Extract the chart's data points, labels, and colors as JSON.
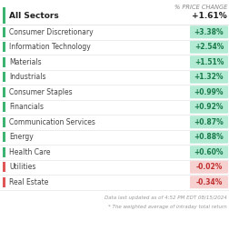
{
  "header_label": "All Sectors",
  "header_value": "+1.61%",
  "col_header": "% PRICE CHANGE",
  "sectors": [
    {
      "name": "Consumer Discretionary",
      "value": "+3.38%",
      "positive": true
    },
    {
      "name": "Information Technology",
      "value": "+2.54%",
      "positive": true
    },
    {
      "name": "Materials",
      "value": "+1.51%",
      "positive": true
    },
    {
      "name": "Industrials",
      "value": "+1.32%",
      "positive": true
    },
    {
      "name": "Consumer Staples",
      "value": "+0.99%",
      "positive": true
    },
    {
      "name": "Financials",
      "value": "+0.92%",
      "positive": true
    },
    {
      "name": "Communication Services",
      "value": "+0.87%",
      "positive": true
    },
    {
      "name": "Energy",
      "value": "+0.88%",
      "positive": true
    },
    {
      "name": "Health Care",
      "value": "+0.60%",
      "positive": true
    },
    {
      "name": "Utilities",
      "value": "-0.02%",
      "positive": false
    },
    {
      "name": "Real Estate",
      "value": "-0.34%",
      "positive": false
    }
  ],
  "footer1": "Data last updated as of 4:52 PM EDT 08/15/2024",
  "footer2": "* The weighted average of intraday total return",
  "positive_bar_color": "#3cb371",
  "negative_bar_color": "#e05555",
  "positive_badge_color": "#b2ead4",
  "negative_badge_color": "#f7d0d0",
  "positive_text_color": "#1a7a4a",
  "negative_text_color": "#c03030",
  "row_line_color": "#e0e0e0",
  "bg_color": "#ffffff",
  "sector_font_size": 5.5,
  "header_font_size": 6.5,
  "col_header_font_size": 4.8,
  "footer_font_size": 4.0,
  "header_text_color": "#222222",
  "sector_text_color": "#444444",
  "footer_text_color": "#999999"
}
